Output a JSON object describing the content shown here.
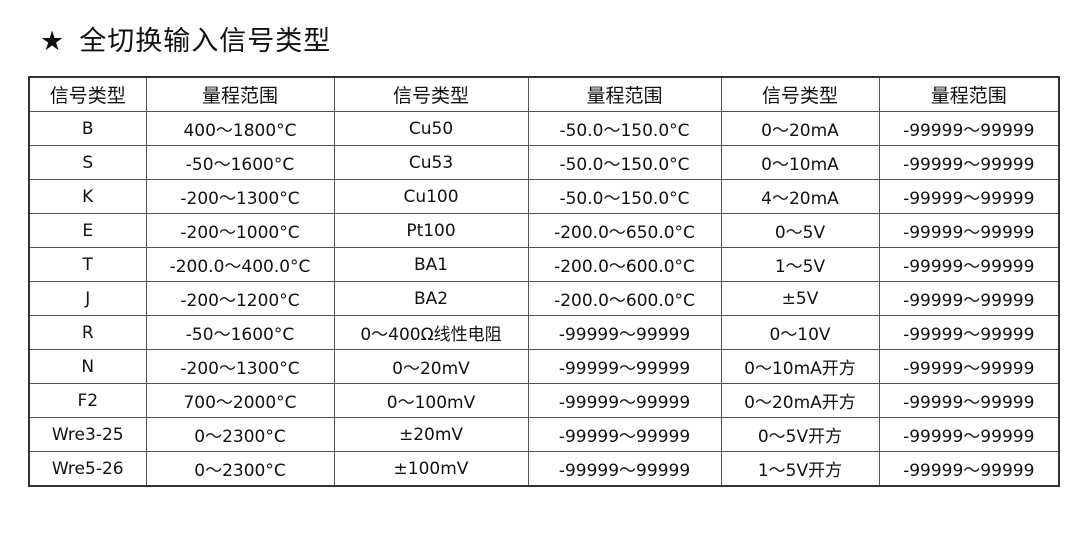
{
  "title": {
    "icon": "star-icon",
    "star": "★",
    "text": "全切换输入信号类型"
  },
  "table": {
    "headers": [
      "信号类型",
      "量程范围",
      "信号类型",
      "量程范围",
      "信号类型",
      "量程范围"
    ],
    "rows": [
      [
        "B",
        "400～1800°C",
        "Cu50",
        "-50.0～150.0°C",
        "0～20mA",
        "-99999～99999"
      ],
      [
        "S",
        "-50～1600°C",
        "Cu53",
        "-50.0～150.0°C",
        "0～10mA",
        "-99999～99999"
      ],
      [
        "K",
        "-200～1300°C",
        "Cu100",
        "-50.0～150.0°C",
        "4～20mA",
        "-99999～99999"
      ],
      [
        "E",
        "-200～1000°C",
        "Pt100",
        "-200.0～650.0°C",
        "0～5V",
        "-99999～99999"
      ],
      [
        "T",
        "-200.0～400.0°C",
        "BA1",
        "-200.0～600.0°C",
        "1～5V",
        "-99999～99999"
      ],
      [
        "J",
        "-200～1200°C",
        "BA2",
        "-200.0～600.0°C",
        "±5V",
        "-99999～99999"
      ],
      [
        "R",
        "-50～1600°C",
        "0～400Ω线性电阻",
        "-99999～99999",
        "0～10V",
        "-99999～99999"
      ],
      [
        "N",
        "-200～1300°C",
        "0～20mV",
        "-99999～99999",
        "0～10mA开方",
        "-99999～99999"
      ],
      [
        "F2",
        "700～2000°C",
        "0～100mV",
        "-99999～99999",
        "0～20mA开方",
        "-99999～99999"
      ],
      [
        "Wre3-25",
        "0～2300°C",
        "±20mV",
        "-99999～99999",
        "0～5V开方",
        "-99999～99999"
      ],
      [
        "Wre5-26",
        "0～2300°C",
        "±100mV",
        "-99999～99999",
        "1～5V开方",
        "-99999～99999"
      ]
    ]
  }
}
